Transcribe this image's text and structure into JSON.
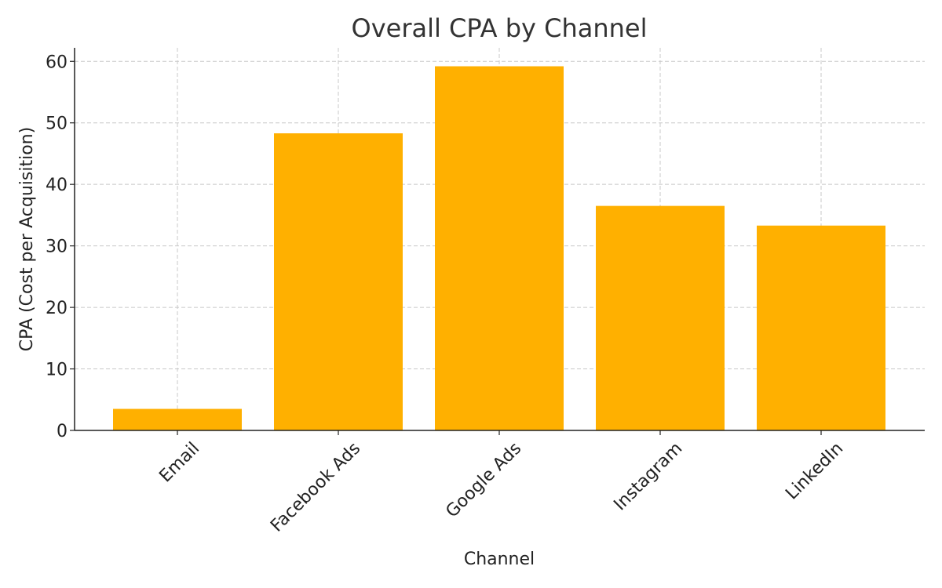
{
  "chart_data": {
    "type": "bar",
    "title": "Overall CPA by Channel",
    "xlabel": "Channel",
    "ylabel": "CPA (Cost per Acquisition)",
    "categories": [
      "Email",
      "Facebook Ads",
      "Google Ads",
      "Instagram",
      "LinkedIn"
    ],
    "values": [
      3.5,
      48.3,
      59.2,
      36.5,
      33.3
    ],
    "ylim": [
      0,
      62.2
    ],
    "yticks": [
      0,
      10,
      20,
      30,
      40,
      50,
      60
    ],
    "grid": true,
    "bar_color": "#FFB000"
  }
}
